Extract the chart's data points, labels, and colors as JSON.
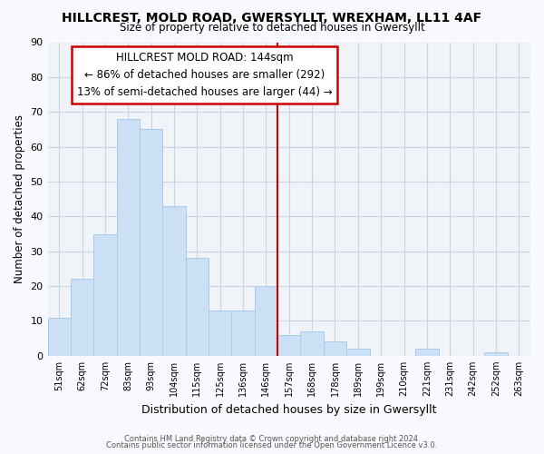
{
  "title": "HILLCREST, MOLD ROAD, GWERSYLLT, WREXHAM, LL11 4AF",
  "subtitle": "Size of property relative to detached houses in Gwersyllt",
  "xlabel": "Distribution of detached houses by size in Gwersyllt",
  "ylabel": "Number of detached properties",
  "bar_labels": [
    "51sqm",
    "62sqm",
    "72sqm",
    "83sqm",
    "93sqm",
    "104sqm",
    "115sqm",
    "125sqm",
    "136sqm",
    "146sqm",
    "157sqm",
    "168sqm",
    "178sqm",
    "189sqm",
    "199sqm",
    "210sqm",
    "221sqm",
    "231sqm",
    "242sqm",
    "252sqm",
    "263sqm"
  ],
  "bar_values": [
    11,
    22,
    35,
    68,
    65,
    43,
    28,
    13,
    13,
    20,
    6,
    7,
    4,
    2,
    0,
    0,
    2,
    0,
    0,
    1,
    0
  ],
  "bar_color": "#cce0f5",
  "bar_edge_color": "#aacce8",
  "vline_x_index": 9,
  "vline_color": "#cc0000",
  "annotation_title": "HILLCREST MOLD ROAD: 144sqm",
  "annotation_line1": "← 86% of detached houses are smaller (292)",
  "annotation_line2": "13% of semi-detached houses are larger (44) →",
  "annotation_box_color": "#ffffff",
  "annotation_box_edge_color": "#cc0000",
  "ylim": [
    0,
    90
  ],
  "yticks": [
    0,
    10,
    20,
    30,
    40,
    50,
    60,
    70,
    80,
    90
  ],
  "footer1": "Contains HM Land Registry data © Crown copyright and database right 2024.",
  "footer2": "Contains public sector information licensed under the Open Government Licence v3.0.",
  "bg_color": "#f7f9fc",
  "plot_bg_color": "#f0f4f8",
  "grid_color": "#c8d4e0"
}
